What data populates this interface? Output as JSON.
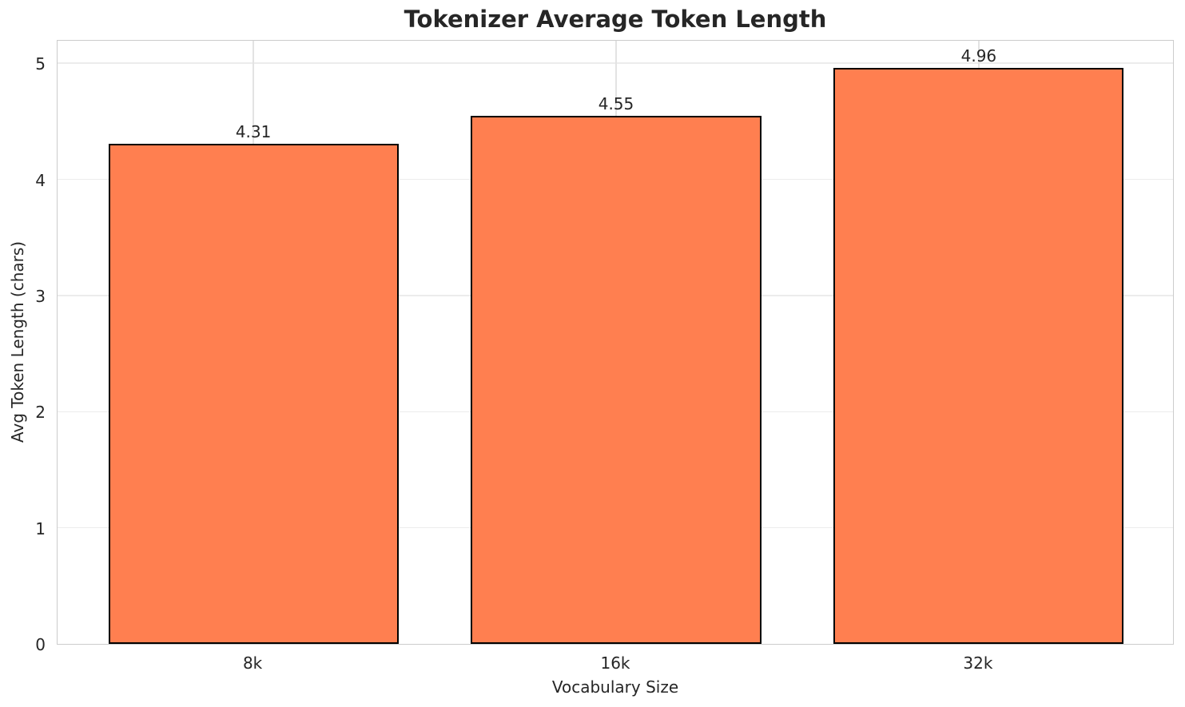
{
  "chart_data": {
    "type": "bar",
    "title": "Tokenizer Average Token Length",
    "xlabel": "Vocabulary Size",
    "ylabel": "Avg Token Length (chars)",
    "categories": [
      "8k",
      "16k",
      "32k"
    ],
    "values": [
      4.31,
      4.55,
      4.96
    ],
    "value_labels": [
      "4.31",
      "4.55",
      "4.96"
    ],
    "yticks": [
      0,
      1,
      2,
      3,
      4,
      5
    ],
    "ytick_labels": [
      "0",
      "1",
      "2",
      "3",
      "4",
      "5"
    ],
    "ylim": [
      0,
      5.208
    ],
    "xlim": [
      -0.54,
      2.54
    ],
    "bar_width_units": 0.8,
    "grid": true,
    "legend": "none",
    "colors": {
      "bar_fill": "#FF7F50",
      "bar_edge": "#000000",
      "h_grid": "#ececec",
      "v_grid": "#e3e3e3",
      "spine": "#cccccc",
      "text": "#262626",
      "background": "#ffffff"
    }
  }
}
